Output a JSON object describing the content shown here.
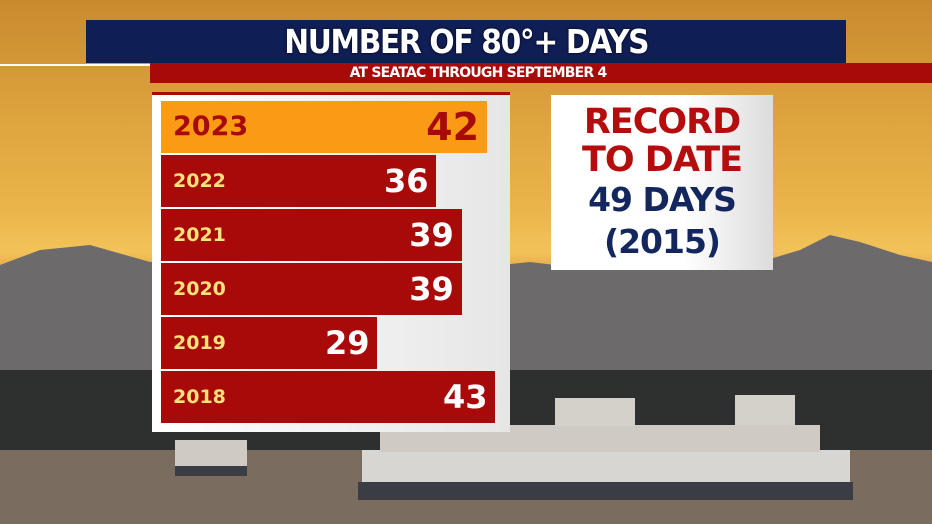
{
  "chart_data": {
    "type": "bar",
    "orientation": "horizontal",
    "title": "NUMBER OF 80°+ DAYS",
    "subtitle": "AT SEATAC THROUGH SEPTEMBER 4",
    "categories": [
      "2023",
      "2022",
      "2021",
      "2020",
      "2019",
      "2018"
    ],
    "values": [
      42,
      36,
      39,
      39,
      29,
      43
    ],
    "highlight": "2023",
    "colors": {
      "bar": "#a80a0a",
      "highlight": "#f99b14",
      "year_label": "#ffe27a"
    }
  },
  "record": {
    "line1": "RECORD",
    "line2": "TO DATE",
    "line3": "49 DAYS",
    "line4": "(2015)"
  }
}
